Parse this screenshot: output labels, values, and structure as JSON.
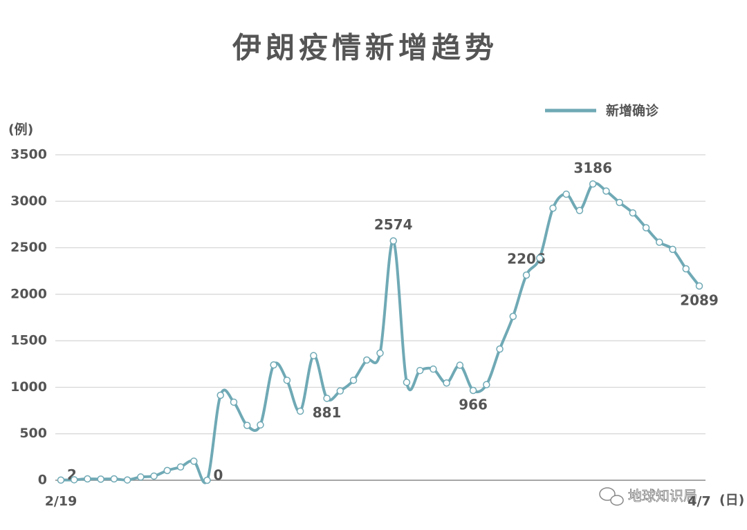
{
  "chart_data": {
    "type": "line",
    "title": "伊朗疫情新增趋势",
    "y_unit": "(例)",
    "x_unit": "(日)",
    "categories": [
      "2/19",
      null,
      null,
      null,
      null,
      null,
      null,
      null,
      null,
      null,
      null,
      null,
      null,
      null,
      null,
      null,
      null,
      null,
      null,
      null,
      null,
      null,
      null,
      null,
      null,
      null,
      null,
      null,
      null,
      null,
      null,
      null,
      null,
      null,
      null,
      null,
      null,
      null,
      null,
      null,
      null,
      null,
      null,
      null,
      null,
      null,
      null,
      null,
      "4/7"
    ],
    "series": [
      {
        "name": "新增确诊",
        "color": "#6fa9b5",
        "values": [
          2,
          5,
          15,
          12,
          15,
          3,
          35,
          45,
          105,
          143,
          205,
          0,
          914,
          840,
          590,
          595,
          1240,
          1075,
          743,
          1340,
          881,
          960,
          1075,
          1293,
          1367,
          2574,
          1053,
          1180,
          1195,
          1046,
          1237,
          966,
          1028,
          1411,
          1762,
          2206,
          2389,
          2926,
          3076,
          2901,
          3186,
          3110,
          2987,
          2875,
          2715,
          2560,
          2483,
          2274,
          2089
        ],
        "value_labels": [
          "2",
          null,
          null,
          null,
          null,
          null,
          null,
          null,
          null,
          null,
          null,
          "0",
          null,
          null,
          null,
          null,
          null,
          null,
          null,
          null,
          "881",
          null,
          null,
          null,
          null,
          "2574",
          null,
          null,
          null,
          null,
          null,
          "966",
          null,
          null,
          null,
          "2206",
          null,
          null,
          null,
          null,
          "3186",
          null,
          null,
          null,
          null,
          null,
          null,
          null,
          "2089"
        ]
      }
    ],
    "ylim": [
      0,
      3500
    ],
    "yticks": [
      0,
      500,
      1000,
      1500,
      2000,
      2500,
      3000,
      3500
    ],
    "grid": true,
    "legend": "top-right"
  },
  "watermark": "地球知识局"
}
